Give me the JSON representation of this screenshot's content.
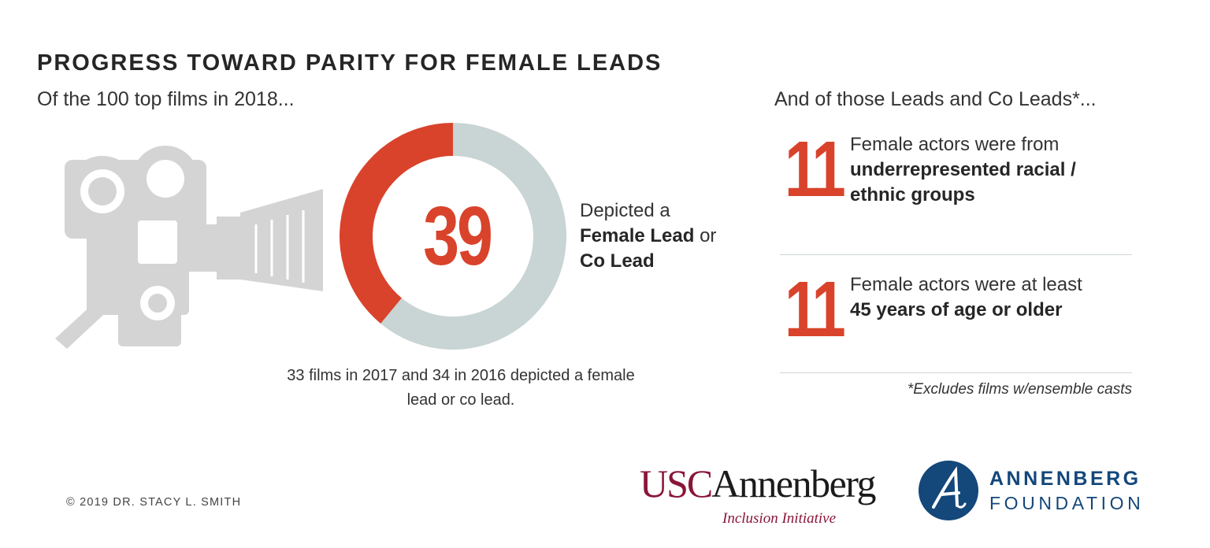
{
  "title": "PROGRESS TOWARD PARITY FOR FEMALE LEADS",
  "subtitle_left": "Of the 100 top films in 2018...",
  "subtitle_right": "And of those Leads and Co Leads*...",
  "donut": {
    "value_label": "39",
    "caption_line1": "Depicted a",
    "caption_bold1": "Female Lead",
    "caption_plain": " or",
    "caption_bold2": "Co Lead"
  },
  "footnote_left_line1": "33 films in 2017 and 34 in 2016 depicted a female",
  "footnote_left_line2": "lead or co lead.",
  "stats": [
    {
      "number": "11",
      "text_plain": "Female actors were from",
      "text_bold1": "underrepresented racial /",
      "text_bold2": "ethnic groups"
    },
    {
      "number": "11",
      "text_plain": "Female actors were at least",
      "text_bold1": "45 years of age or older",
      "text_bold2": ""
    }
  ],
  "footnote_right": "*Excludes films w/ensemble casts",
  "copyright": "© 2019 DR. STACY L. SMITH",
  "logos": {
    "usc_part1": "USC",
    "usc_part2": "Annenberg",
    "usc_sub": "Inclusion Initiative",
    "foundation_line1": "ANNENBERG",
    "foundation_line2": "FOUNDATION"
  },
  "colors": {
    "accent": "#d9432b",
    "donut_rest": "#c9d4d4",
    "camera": "#d4d4d4",
    "usc": "#8a1538",
    "foundation": "#14477a"
  },
  "icons": {
    "camera": "film-camera-icon",
    "foundation": "annenberg-a-emblem-icon"
  },
  "chart_data": {
    "type": "pie",
    "donut": true,
    "categories": [
      "Female Lead or Co Lead",
      "Other"
    ],
    "values": [
      39,
      61
    ],
    "total": 100
  }
}
